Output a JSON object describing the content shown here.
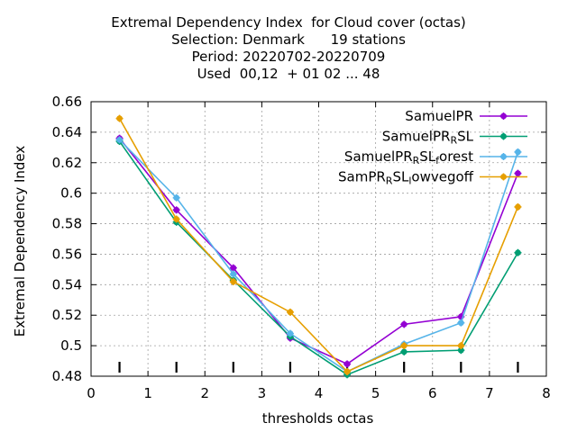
{
  "chart_data": {
    "type": "line",
    "title_lines": [
      "Extremal Dependency Index  for Cloud cover (octas)",
      "Selection: Denmark      19 stations",
      "Period: 20220702-20220709",
      "Used  00,12  + 01 02 ... 48"
    ],
    "xlabel": "thresholds octas",
    "ylabel": "Extremal Dependency Index",
    "xlim": [
      0,
      8
    ],
    "ylim": [
      0.48,
      0.66
    ],
    "xticks": [
      0,
      1,
      2,
      3,
      4,
      5,
      6,
      7,
      8
    ],
    "yticks": [
      0.48,
      0.5,
      0.52,
      0.54,
      0.56,
      0.58,
      0.6,
      0.62,
      0.64,
      0.66
    ],
    "ytick_labels": [
      "0.48",
      "0.5",
      "0.52",
      "0.54",
      "0.56",
      "0.58",
      "0.6",
      "0.62",
      "0.64",
      "0.66"
    ],
    "grid": true,
    "legend_position": "top-right",
    "x": [
      0.5,
      1.5,
      2.5,
      3.5,
      4.5,
      5.5,
      6.5,
      7.5
    ],
    "threshold_marks": [
      0.5,
      1.5,
      2.5,
      3.5,
      4.5,
      5.5,
      6.5,
      7.5
    ],
    "series": [
      {
        "name": "SamuelPR",
        "legend_parts": [
          [
            "SamuelPR",
            ""
          ]
        ],
        "color": "#9400d3",
        "values": [
          0.636,
          0.589,
          0.551,
          0.505,
          0.488,
          0.514,
          0.519,
          0.613
        ]
      },
      {
        "name": "SamuelPR_RSL",
        "legend_parts": [
          [
            "SamuelPR",
            ""
          ],
          [
            "R",
            "sub"
          ],
          [
            "SL",
            ""
          ]
        ],
        "color": "#009e73",
        "values": [
          0.634,
          0.581,
          0.543,
          0.506,
          0.481,
          0.496,
          0.497,
          0.561
        ]
      },
      {
        "name": "SamuelPR_RSL_forest",
        "legend_parts": [
          [
            "SamuelPR",
            ""
          ],
          [
            "R",
            "sub"
          ],
          [
            "SL",
            ""
          ],
          [
            "f",
            "sub"
          ],
          [
            "orest",
            ""
          ]
        ],
        "color": "#56b4e9",
        "values": [
          0.635,
          0.597,
          0.547,
          0.508,
          0.483,
          0.501,
          0.515,
          0.627
        ]
      },
      {
        "name": "SamPR_RSL_lowvegoff",
        "legend_parts": [
          [
            "SamPR",
            ""
          ],
          [
            "R",
            "sub"
          ],
          [
            "SL",
            ""
          ],
          [
            "l",
            "sub"
          ],
          [
            "owvegoff",
            ""
          ]
        ],
        "color": "#e69f00",
        "values": [
          0.649,
          0.583,
          0.542,
          0.522,
          0.483,
          0.5,
          0.5,
          0.591
        ]
      }
    ]
  }
}
